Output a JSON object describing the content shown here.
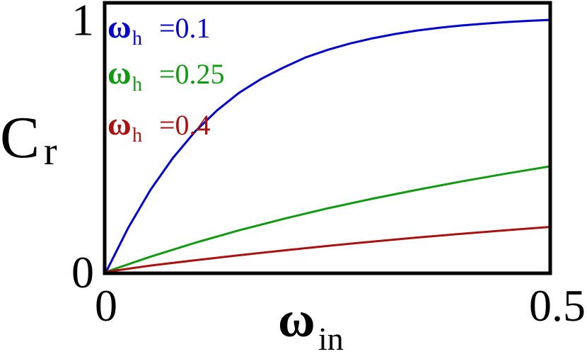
{
  "chart_data": {
    "type": "line",
    "title": "",
    "xlabel": {
      "main": "ω",
      "sub": "in"
    },
    "ylabel": {
      "main": "C",
      "sub": "r"
    },
    "xlim": [
      0,
      0.5
    ],
    "ylim": [
      0,
      1.06
    ],
    "x_ticks": [
      {
        "value": 0,
        "label": "0"
      },
      {
        "value": 0.5,
        "label": "0.5"
      }
    ],
    "y_ticks": [
      {
        "value": 0,
        "label": "0"
      },
      {
        "value": 1,
        "label": "1"
      }
    ],
    "grid": false,
    "legend_position": "top-left",
    "series": [
      {
        "name": "ω_h =0.1",
        "legend_main": "ω",
        "legend_sub": "h",
        "legend_value": "=0.1",
        "color": "#0000cc",
        "x": [
          0,
          0.025,
          0.05,
          0.075,
          0.1,
          0.125,
          0.15,
          0.175,
          0.2,
          0.225,
          0.25,
          0.275,
          0.3,
          0.325,
          0.35,
          0.375,
          0.4,
          0.425,
          0.45,
          0.475,
          0.5
        ],
        "y": [
          0,
          0.175,
          0.325,
          0.45,
          0.555,
          0.64,
          0.71,
          0.765,
          0.81,
          0.85,
          0.88,
          0.905,
          0.925,
          0.942,
          0.956,
          0.967,
          0.976,
          0.983,
          0.989,
          0.994,
          0.998
        ]
      },
      {
        "name": "ω_h =0.25",
        "legend_main": "ω",
        "legend_sub": "h",
        "legend_value": "=0.25",
        "color": "#119911",
        "x": [
          0,
          0.05,
          0.1,
          0.15,
          0.2,
          0.25,
          0.3,
          0.35,
          0.4,
          0.45,
          0.5
        ],
        "y": [
          0,
          0.06,
          0.115,
          0.165,
          0.21,
          0.252,
          0.29,
          0.325,
          0.358,
          0.389,
          0.418
        ]
      },
      {
        "name": "ω_h =0.4",
        "legend_main": "ω",
        "legend_sub": "h",
        "legend_value": "=0.4",
        "color": "#aa1111",
        "x": [
          0,
          0.05,
          0.1,
          0.15,
          0.2,
          0.25,
          0.3,
          0.35,
          0.4,
          0.45,
          0.5
        ],
        "y": [
          0,
          0.025,
          0.046,
          0.066,
          0.085,
          0.103,
          0.12,
          0.136,
          0.151,
          0.165,
          0.178
        ]
      }
    ]
  }
}
